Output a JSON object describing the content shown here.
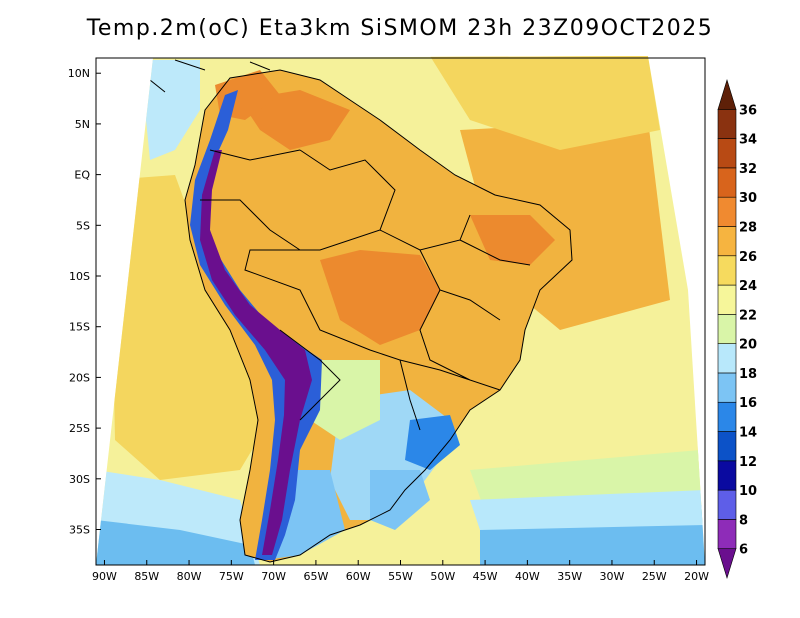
{
  "title": "Temp.2m(oC) Eta3km SiSMOM 23h 23Z09OCT2025",
  "axes": {
    "lat_labels": [
      "10N",
      "5N",
      "EQ",
      "5S",
      "10S",
      "15S",
      "20S",
      "25S",
      "30S",
      "35S"
    ],
    "lat_values": [
      10,
      5,
      0,
      -5,
      -10,
      -15,
      -20,
      -25,
      -30,
      -35
    ],
    "lon_labels": [
      "90W",
      "85W",
      "80W",
      "75W",
      "70W",
      "65W",
      "60W",
      "55W",
      "50W",
      "45W",
      "40W",
      "35W",
      "30W",
      "25W",
      "20W"
    ],
    "lon_values": [
      -90,
      -85,
      -80,
      -75,
      -70,
      -65,
      -60,
      -55,
      -50,
      -45,
      -40,
      -35,
      -30,
      -25,
      -20
    ],
    "lon_range": [
      -91,
      -19
    ],
    "lat_range": [
      -38.5,
      11.5
    ]
  },
  "colorbar": {
    "labels": [
      "6",
      "8",
      "10",
      "12",
      "14",
      "16",
      "18",
      "20",
      "22",
      "24",
      "26",
      "28",
      "30",
      "32",
      "34",
      "36"
    ],
    "colors": [
      "#6a0f8e",
      "#8e2cb8",
      "#5e5ee8",
      "#0a0aa0",
      "#0c52c8",
      "#2b87e8",
      "#7cc4f4",
      "#b8e8fb",
      "#d9f5a8",
      "#f6f69a",
      "#f6da5e",
      "#f6b440",
      "#f08a30",
      "#d8641c",
      "#b84a14",
      "#8a3210",
      "#5e2008"
    ]
  },
  "palette": {
    "ocean_south": "#6cbdf0",
    "ocean_cool": "#bde9fa",
    "ocean_mild": "#f5f19a",
    "ocean_warm": "#f4d65e",
    "ocean_hot": "#f2b340",
    "land_warm": "#f1b33f",
    "land_hot": "#ec8a2e",
    "land_cool": "#9fd8f6",
    "andes_cold": "#6a0f8e",
    "andes_mid": "#2b5fd8",
    "border": "#000000"
  }
}
